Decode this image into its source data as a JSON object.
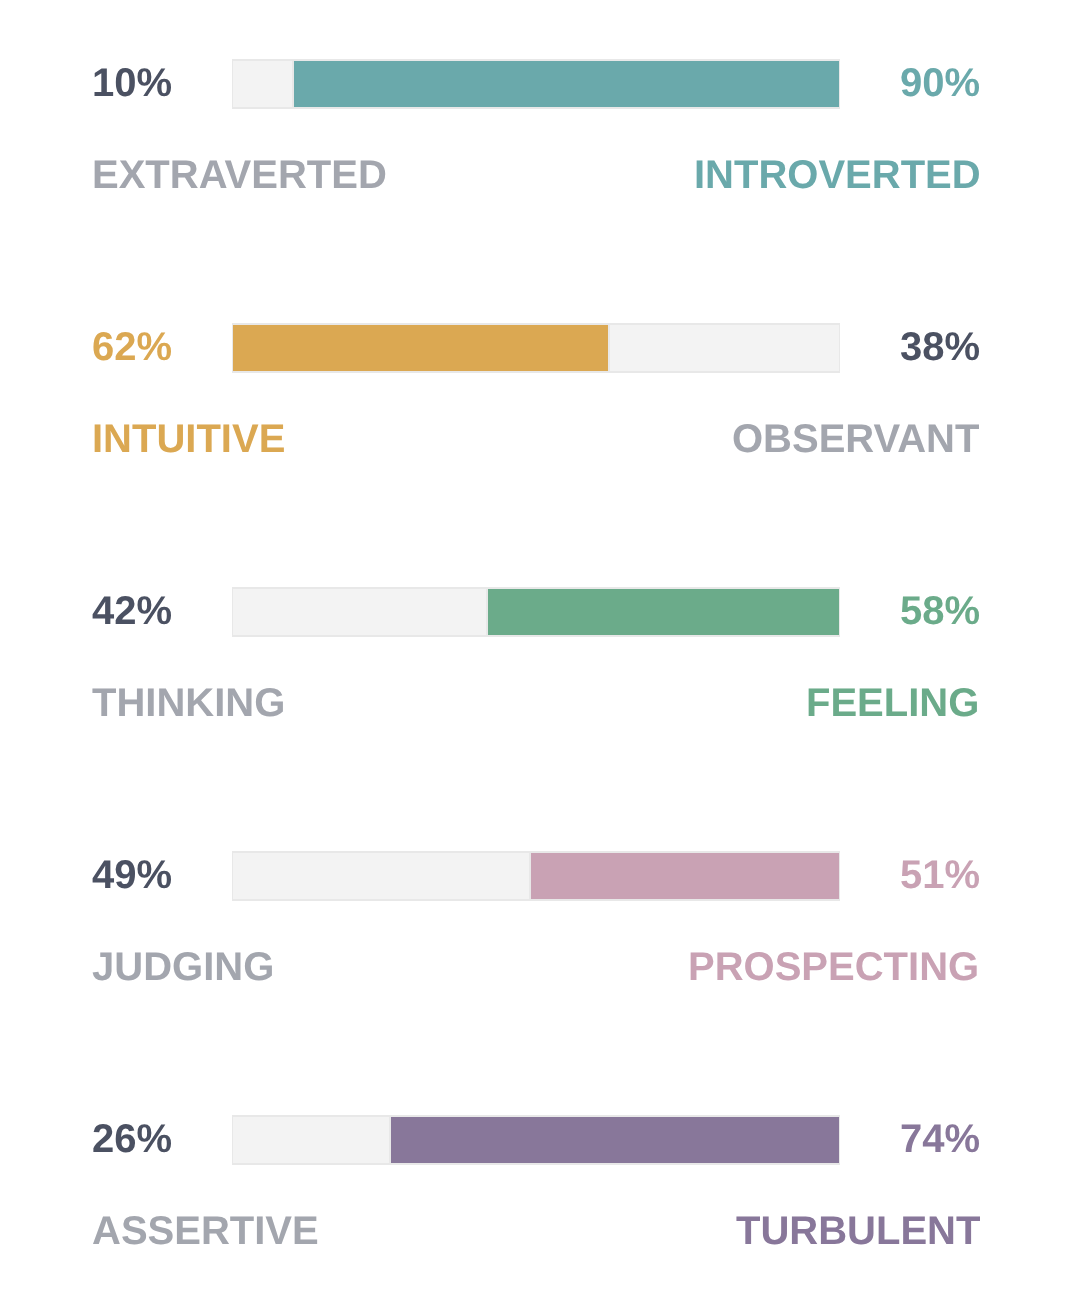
{
  "chart_data": {
    "type": "bar",
    "orientation": "horizontal",
    "stacked": true,
    "categories": [
      null,
      null,
      null,
      null,
      null
    ],
    "xlim": [
      0,
      100
    ],
    "legend": false,
    "series": [
      {
        "colors": [
          "#f3f3f3",
          "#dba852",
          "#f3f3f3",
          "#f3f3f3",
          "#f3f3f3"
        ],
        "values": [
          10,
          62,
          42,
          49,
          26
        ],
        "value_labels": [
          "10%",
          "62%",
          "42%",
          "49%",
          "26%"
        ]
      },
      {
        "colors": [
          "#6aa9ab",
          "#f3f3f3",
          "#6bab8a",
          "#c9a2b4",
          "#88779a"
        ],
        "values": [
          90,
          38,
          58,
          51,
          74
        ],
        "value_labels": [
          "90%",
          "38%",
          "58%",
          "51%",
          "74%"
        ]
      }
    ],
    "annotations": [
      "EXTRAVERTED",
      "INTROVERTED",
      "INTUITIVE",
      "OBSERVANT",
      "THINKING",
      "FEELING",
      "JUDGING",
      "PROSPECTING",
      "ASSERTIVE",
      "TURBULENT"
    ]
  }
}
